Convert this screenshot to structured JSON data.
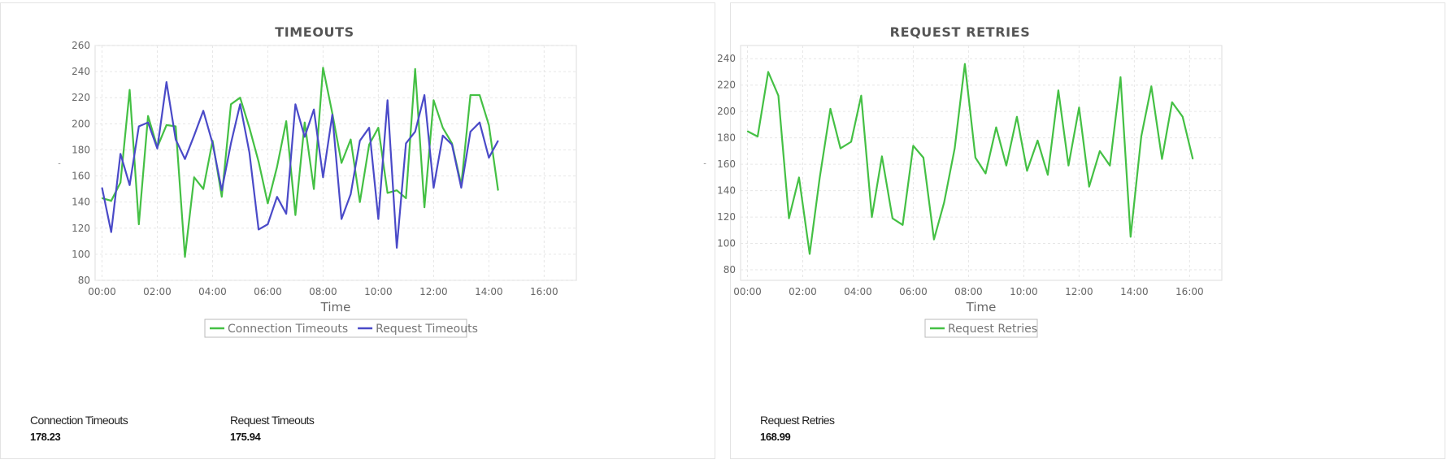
{
  "panels": [
    {
      "title": "TIMEOUTS",
      "stats": [
        {
          "label": "Connection Timeouts",
          "value": "178.23"
        },
        {
          "label": "Request Timeouts",
          "value": "175.94"
        }
      ]
    },
    {
      "title": "REQUEST RETRIES",
      "stats": [
        {
          "label": "Request Retries",
          "value": "168.99"
        }
      ]
    }
  ],
  "chart_data": [
    {
      "type": "line",
      "title": "TIMEOUTS",
      "xlabel": "Time",
      "ylabel": "-",
      "ylim": [
        80,
        260
      ],
      "yticks": [
        80,
        100,
        120,
        140,
        160,
        180,
        200,
        220,
        240,
        260
      ],
      "xlim": [
        "23:45",
        "17:10"
      ],
      "xticks": [
        "00:00",
        "02:00",
        "04:00",
        "06:00",
        "08:00",
        "10:00",
        "12:00",
        "14:00",
        "16:00"
      ],
      "grid": true,
      "legend_position": "bottom-center",
      "series": [
        {
          "name": "Connection Timeouts",
          "color": "#44c044",
          "x": [
            "00:00",
            "00:20",
            "00:40",
            "01:00",
            "01:20",
            "01:40",
            "02:00",
            "02:20",
            "02:40",
            "03:00",
            "03:20",
            "03:40",
            "04:00",
            "04:20",
            "04:40",
            "05:00",
            "05:20",
            "05:40",
            "06:00",
            "06:20",
            "06:40",
            "07:00",
            "07:20",
            "07:40",
            "08:00",
            "08:20",
            "08:40",
            "09:00",
            "09:20",
            "09:40",
            "10:00",
            "10:20",
            "10:40",
            "11:00",
            "11:20",
            "11:40",
            "12:00",
            "12:20",
            "12:40",
            "13:00",
            "13:20",
            "13:40",
            "14:00",
            "14:20",
            "14:40",
            "15:00",
            "15:20",
            "15:40",
            "16:00",
            "16:20"
          ],
          "values": [
            143,
            141,
            155,
            226,
            123,
            206,
            182,
            199,
            198,
            98,
            159,
            150,
            187,
            144,
            215,
            220,
            197,
            171,
            139,
            167,
            202,
            130,
            201,
            150,
            243,
            208,
            170,
            188,
            140,
            184,
            197,
            147,
            149,
            143,
            242,
            136,
            218,
            197,
            185,
            153,
            222,
            222,
            199,
            149,
            null,
            null,
            null,
            null,
            null,
            null
          ]
        },
        {
          "name": "Request Timeouts",
          "color": "#4a4ac8",
          "x": [
            "00:00",
            "00:20",
            "00:40",
            "01:00",
            "01:20",
            "01:40",
            "02:00",
            "02:20",
            "02:40",
            "03:00",
            "03:20",
            "03:40",
            "04:00",
            "04:20",
            "04:40",
            "05:00",
            "05:20",
            "05:40",
            "06:00",
            "06:20",
            "06:40",
            "07:00",
            "07:20",
            "07:40",
            "08:00",
            "08:20",
            "08:40",
            "09:00",
            "09:20",
            "09:40",
            "10:00",
            "10:20",
            "10:40",
            "11:00",
            "11:20",
            "11:40",
            "12:00",
            "12:20",
            "12:40",
            "13:00",
            "13:20",
            "13:40",
            "14:00",
            "14:20",
            "14:40",
            "15:00",
            "15:20",
            "15:40",
            "16:00",
            "16:20"
          ],
          "values": [
            151,
            117,
            177,
            153,
            198,
            201,
            181,
            232,
            188,
            173,
            191,
            210,
            185,
            149,
            185,
            215,
            178,
            119,
            123,
            144,
            131,
            215,
            190,
            211,
            159,
            207,
            127,
            146,
            187,
            197,
            127,
            218,
            105,
            185,
            194,
            222,
            151,
            191,
            184,
            151,
            194,
            201,
            174,
            187,
            null,
            null,
            null,
            null,
            null,
            null
          ]
        }
      ]
    },
    {
      "type": "line",
      "title": "REQUEST RETRIES",
      "xlabel": "Time",
      "ylabel": "-",
      "ylim": [
        72,
        250
      ],
      "yticks": [
        80,
        100,
        120,
        140,
        160,
        180,
        200,
        220,
        240
      ],
      "xlim": [
        "23:45",
        "17:10"
      ],
      "xticks": [
        "00:00",
        "02:00",
        "04:00",
        "06:00",
        "08:00",
        "10:00",
        "12:00",
        "14:00",
        "16:00"
      ],
      "grid": true,
      "legend_position": "bottom-center",
      "series": [
        {
          "name": "Request Retries",
          "color": "#44c044",
          "x": [
            "00:00",
            "00:22",
            "00:45",
            "01:07",
            "01:30",
            "01:52",
            "02:15",
            "02:37",
            "03:00",
            "03:22",
            "03:45",
            "04:07",
            "04:30",
            "04:52",
            "05:15",
            "05:37",
            "06:00",
            "06:22",
            "06:45",
            "07:07",
            "07:30",
            "07:52",
            "08:15",
            "08:37",
            "09:00",
            "09:22",
            "09:45",
            "10:07",
            "10:30",
            "10:52",
            "11:15",
            "11:37",
            "12:00",
            "12:22",
            "12:45",
            "13:07",
            "13:30",
            "13:52",
            "14:15",
            "14:37",
            "15:00",
            "15:22",
            "15:45",
            "16:07",
            "16:30"
          ],
          "values": [
            185,
            181,
            230,
            212,
            119,
            150,
            92,
            150,
            202,
            172,
            177,
            212,
            120,
            166,
            119,
            114,
            174,
            165,
            103,
            131,
            172,
            236,
            165,
            153,
            188,
            159,
            196,
            155,
            178,
            152,
            216,
            159,
            203,
            143,
            170,
            159,
            226,
            105,
            181,
            219,
            164,
            207,
            196,
            164,
            null
          ]
        }
      ]
    }
  ]
}
